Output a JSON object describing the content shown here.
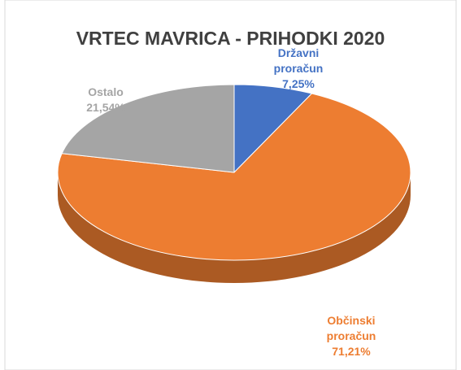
{
  "chart_data": {
    "type": "pie",
    "title": "VRTEC MAVRICA - PRIHODKI 2020",
    "categories": [
      "Državni proračun",
      "Občinski proračun",
      "Ostalo"
    ],
    "values": [
      7.25,
      71.21,
      21.54
    ],
    "value_labels": [
      "7,25%",
      "71,21%",
      "21,54%"
    ],
    "colors": [
      "#4472c4",
      "#ed7d31",
      "#a5a5a5"
    ]
  }
}
